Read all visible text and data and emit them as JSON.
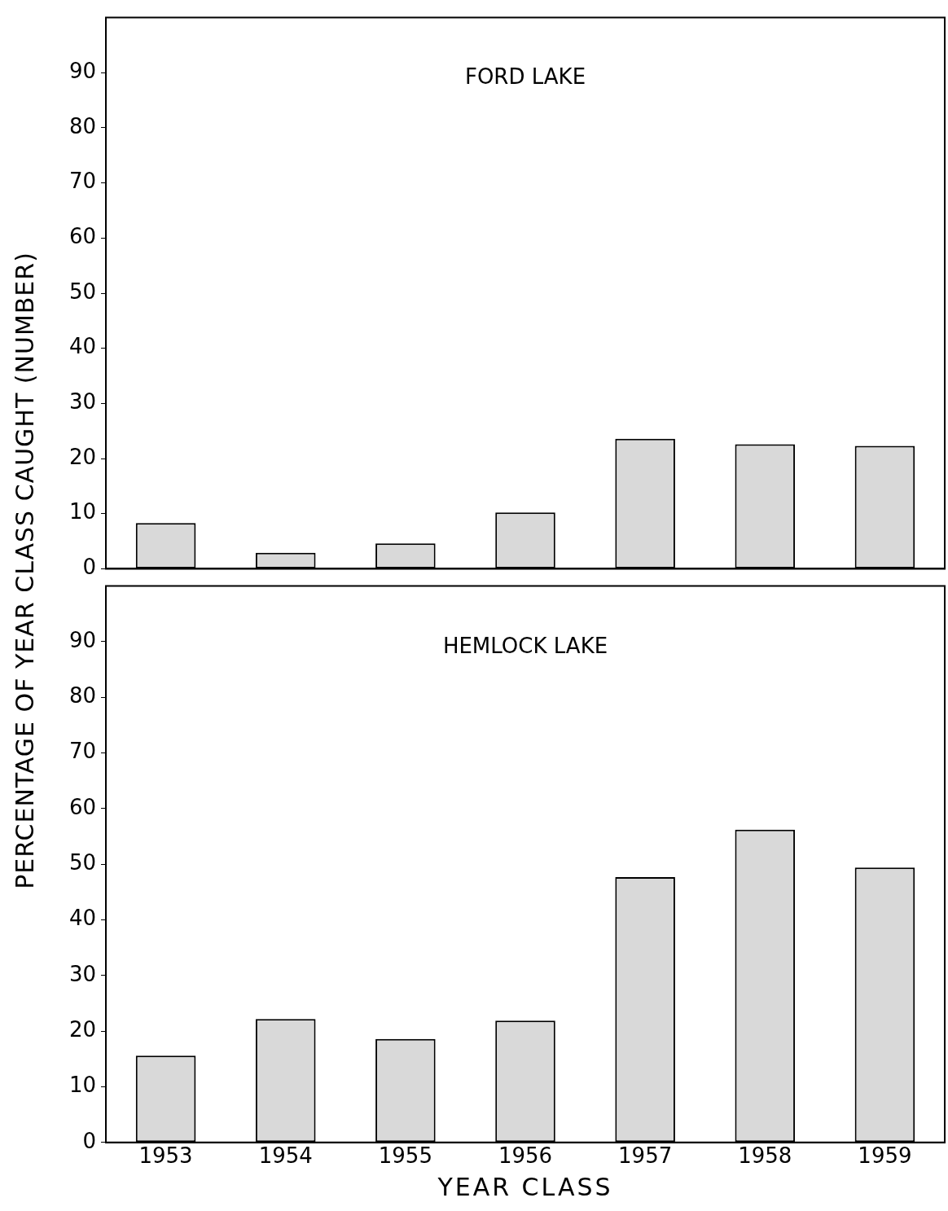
{
  "chart_data": [
    {
      "type": "bar",
      "title": "FORD LAKE",
      "ylabel": "PERCENTAGE OF YEAR CLASS CAUGHT (NUMBER)",
      "categories": [
        "1953",
        "1954",
        "1955",
        "1956",
        "1957",
        "1958",
        "1959"
      ],
      "values": [
        8.3,
        2.9,
        4.6,
        10.2,
        23.6,
        22.6,
        22.3
      ],
      "color": "#d9d9d9",
      "ylim": [
        0,
        100
      ],
      "yticks": [
        0,
        10,
        20,
        30,
        40,
        50,
        60,
        70,
        80,
        90
      ],
      "tick_labels": "y",
      "grid": false,
      "legend": false
    },
    {
      "type": "bar",
      "title": "HEMLOCK LAKE",
      "xlabel": "YEAR CLASS",
      "categories": [
        "1953",
        "1954",
        "1955",
        "1956",
        "1957",
        "1958",
        "1959"
      ],
      "values": [
        15.6,
        22.2,
        18.6,
        21.9,
        47.7,
        56.2,
        49.4
      ],
      "color": "#d9d9d9",
      "ylim": [
        0,
        100
      ],
      "yticks": [
        0,
        10,
        20,
        30,
        40,
        50,
        60,
        70,
        80,
        90
      ],
      "grid": false,
      "legend": false
    }
  ]
}
